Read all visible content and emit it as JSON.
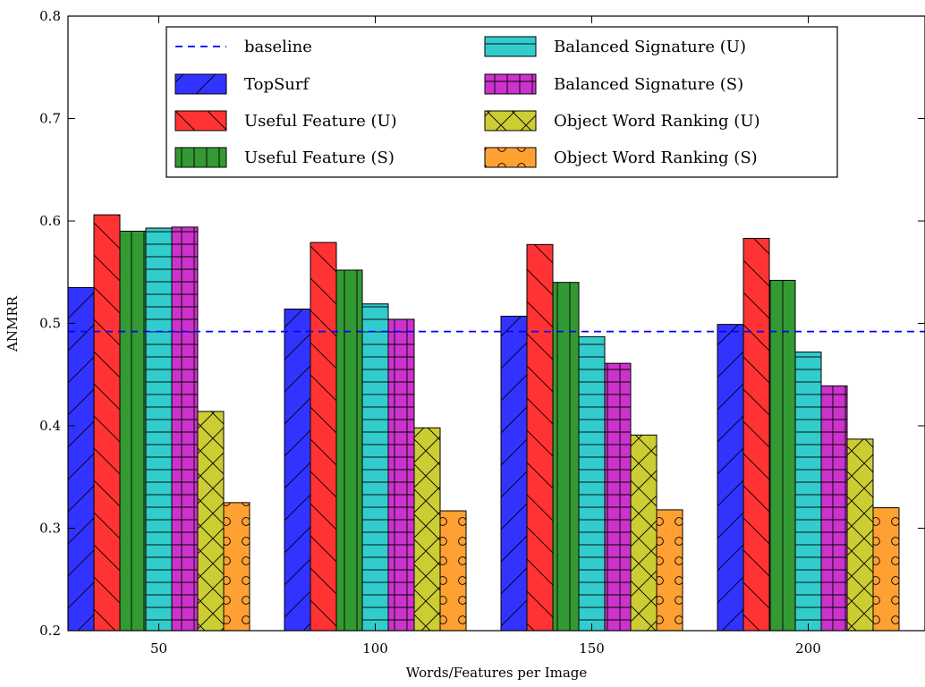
{
  "chart_data": {
    "type": "bar",
    "xlabel": "Words/Features per Image",
    "ylabel": "ANMRR",
    "ylim": [
      0.2,
      0.8
    ],
    "yticks": [
      "0.2",
      "0.3",
      "0.4",
      "0.5",
      "0.6",
      "0.7",
      "0.8"
    ],
    "categories": [
      "50",
      "100",
      "150",
      "200"
    ],
    "baseline": {
      "name": "baseline",
      "value": 0.492,
      "color": "#0000ff"
    },
    "legend_position": "upper-center",
    "series": [
      {
        "name": "TopSurf",
        "color": "#3333ff",
        "hatch": "diag-fwd",
        "values": [
          0.535,
          0.514,
          0.507,
          0.499
        ]
      },
      {
        "name": "Useful Feature (U)",
        "color": "#ff3333",
        "hatch": "diag-back",
        "values": [
          0.606,
          0.579,
          0.577,
          0.583
        ]
      },
      {
        "name": "Useful Feature (S)",
        "color": "#339933",
        "hatch": "vertical",
        "values": [
          0.59,
          0.552,
          0.54,
          0.542
        ]
      },
      {
        "name": "Balanced Signature (U)",
        "color": "#33cccc",
        "hatch": "horizontal",
        "values": [
          0.593,
          0.519,
          0.487,
          0.472
        ]
      },
      {
        "name": "Balanced Signature (S)",
        "color": "#cc33cc",
        "hatch": "grid",
        "values": [
          0.594,
          0.504,
          0.461,
          0.439
        ]
      },
      {
        "name": "Object Word Ranking (U)",
        "color": "#cccc33",
        "hatch": "cross",
        "values": [
          0.414,
          0.398,
          0.391,
          0.387
        ]
      },
      {
        "name": "Object Word Ranking (S)",
        "color": "#ffa033",
        "hatch": "circles",
        "values": [
          0.325,
          0.317,
          0.318,
          0.32
        ]
      }
    ]
  }
}
